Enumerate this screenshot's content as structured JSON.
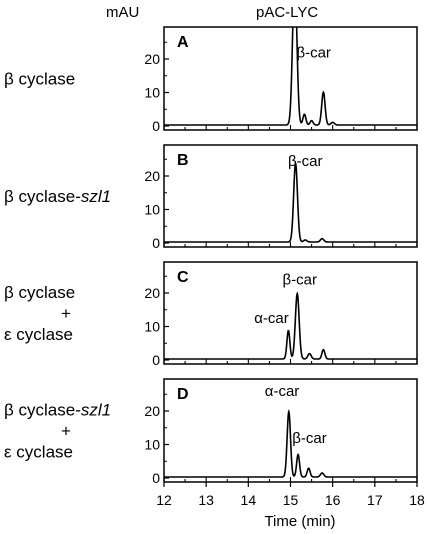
{
  "header": {
    "y_unit": "mAU",
    "construct": "pAC-LYC"
  },
  "x_axis": {
    "title": "Time (min)",
    "ticks": [
      "12",
      "13",
      "14",
      "15",
      "16",
      "17",
      "18"
    ]
  },
  "panels": [
    {
      "letter": "A",
      "row_label": [
        {
          "parts": [
            {
              "text": "β cyclase",
              "italic": false
            }
          ]
        }
      ],
      "y_ticks": [
        "0",
        "10",
        "20"
      ],
      "peak_labels": [
        {
          "text": "β-car",
          "x": 15.55,
          "y": 22
        }
      ]
    },
    {
      "letter": "B",
      "row_label": [
        {
          "parts": [
            {
              "text": "β cyclase-",
              "italic": false
            },
            {
              "text": "szl1",
              "italic": true
            }
          ]
        }
      ],
      "y_ticks": [
        "0",
        "10",
        "20"
      ],
      "peak_labels": [
        {
          "text": "β-car",
          "x": 15.35,
          "y": 24.5
        }
      ]
    },
    {
      "letter": "C",
      "row_label": [
        {
          "parts": [
            {
              "text": "β cyclase",
              "italic": false
            }
          ]
        },
        {
          "parts": [
            {
              "text": "+",
              "italic": false
            }
          ]
        },
        {
          "parts": [
            {
              "text": "ε cyclase",
              "italic": false
            }
          ]
        }
      ],
      "y_ticks": [
        "0",
        "10",
        "20"
      ],
      "peak_labels": [
        {
          "text": "β-car",
          "x": 15.22,
          "y": 24
        },
        {
          "text": "α-car",
          "x": 14.55,
          "y": 12.5
        }
      ]
    },
    {
      "letter": "D",
      "row_label": [
        {
          "parts": [
            {
              "text": "β cyclase-",
              "italic": false
            },
            {
              "text": "szl1",
              "italic": true
            }
          ]
        },
        {
          "parts": [
            {
              "text": "+",
              "italic": false
            }
          ]
        },
        {
          "parts": [
            {
              "text": "ε cyclase",
              "italic": false
            }
          ]
        }
      ],
      "y_ticks": [
        "0",
        "10",
        "20"
      ],
      "peak_labels": [
        {
          "text": "α-car",
          "x": 14.8,
          "y": 26
        },
        {
          "text": "β-car",
          "x": 15.45,
          "y": 12
        }
      ]
    }
  ],
  "chart_data": [
    {
      "type": "line",
      "panel": "A",
      "xlabel": "Time (min)",
      "ylabel": "mAU",
      "xlim": [
        12,
        18
      ],
      "ylim": [
        0,
        28
      ],
      "baseline": 0.3,
      "peaks": [
        {
          "name": "β-car",
          "rt": 15.1,
          "height": 45,
          "width": 0.05
        },
        {
          "rt": 15.33,
          "height": 3.2,
          "width": 0.035
        },
        {
          "rt": 15.5,
          "height": 1.3,
          "width": 0.035
        },
        {
          "rt": 15.78,
          "height": 9.8,
          "width": 0.04
        },
        {
          "rt": 16.0,
          "height": 0.8,
          "width": 0.04
        }
      ]
    },
    {
      "type": "line",
      "panel": "B",
      "xlabel": "Time (min)",
      "ylabel": "mAU",
      "xlim": [
        12,
        18
      ],
      "ylim": [
        0,
        28
      ],
      "baseline": 0.3,
      "peaks": [
        {
          "name": "β-car",
          "rt": 15.12,
          "height": 23.5,
          "width": 0.045
        },
        {
          "rt": 15.35,
          "height": 0.6,
          "width": 0.04
        },
        {
          "rt": 15.75,
          "height": 1.0,
          "width": 0.04
        }
      ]
    },
    {
      "type": "line",
      "panel": "C",
      "xlabel": "Time (min)",
      "ylabel": "mAU",
      "xlim": [
        12,
        18
      ],
      "ylim": [
        0,
        28
      ],
      "baseline": 0.3,
      "peaks": [
        {
          "name": "α-car",
          "rt": 14.95,
          "height": 8.5,
          "width": 0.035
        },
        {
          "name": "β-car",
          "rt": 15.16,
          "height": 19.5,
          "width": 0.045
        },
        {
          "rt": 15.45,
          "height": 1.6,
          "width": 0.04
        },
        {
          "rt": 15.78,
          "height": 2.8,
          "width": 0.035
        }
      ]
    },
    {
      "type": "line",
      "panel": "D",
      "xlabel": "Time (min)",
      "ylabel": "mAU",
      "xlim": [
        12,
        18
      ],
      "ylim": [
        0,
        28
      ],
      "baseline": 0.3,
      "peaks": [
        {
          "name": "α-car",
          "rt": 14.96,
          "height": 19.5,
          "width": 0.04
        },
        {
          "name": "β-car",
          "rt": 15.18,
          "height": 6.7,
          "width": 0.035
        },
        {
          "rt": 15.43,
          "height": 2.6,
          "width": 0.035
        },
        {
          "rt": 15.75,
          "height": 1.2,
          "width": 0.04
        }
      ]
    }
  ]
}
